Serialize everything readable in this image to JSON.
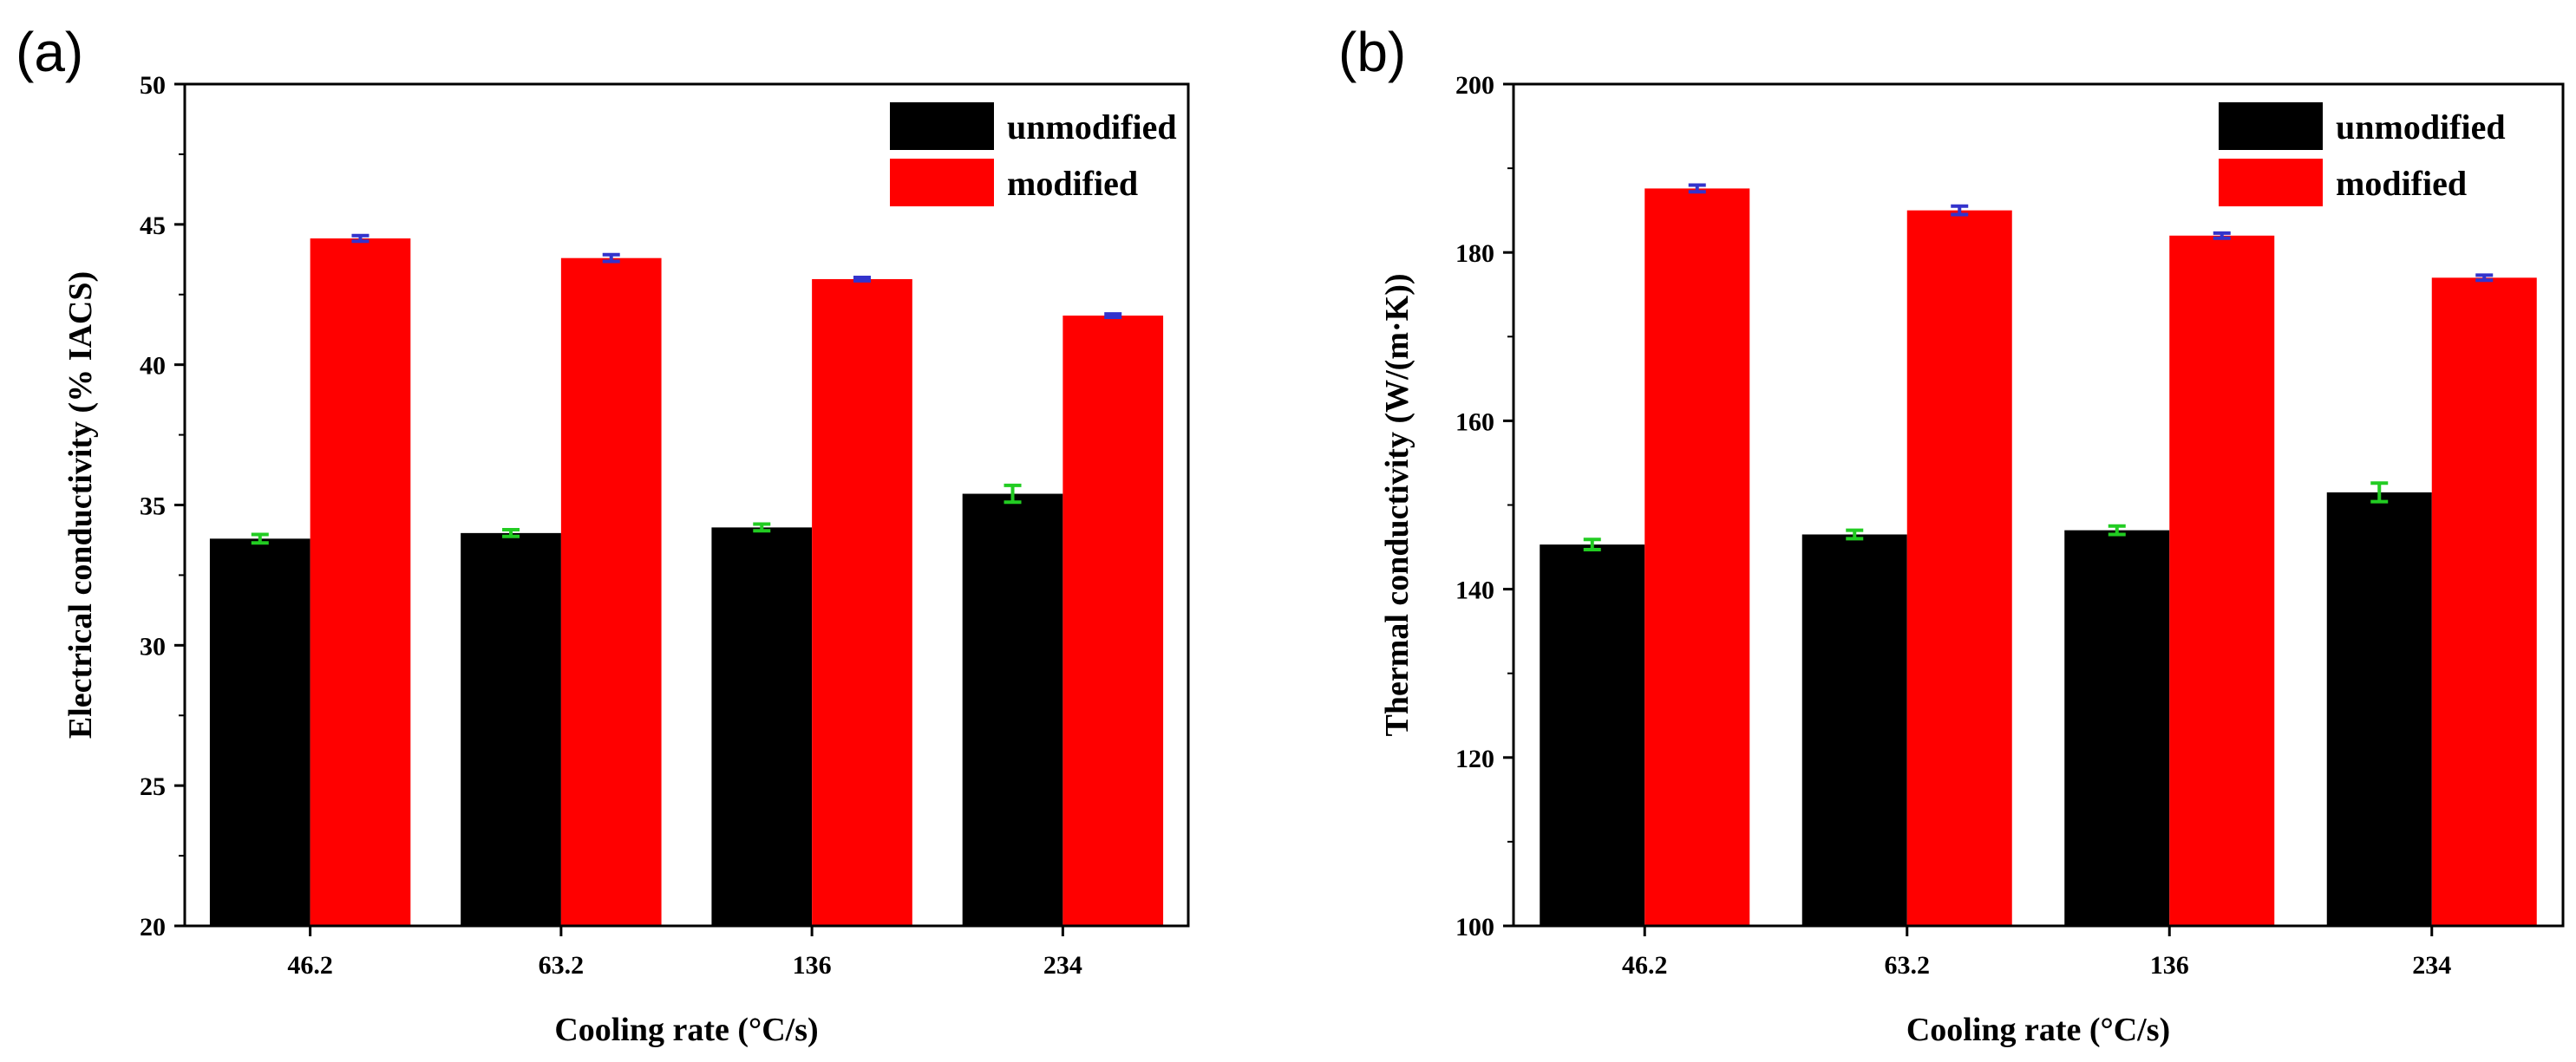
{
  "chart_data": [
    {
      "type": "bar",
      "panel_label": "(a)",
      "categories": [
        "46.2",
        "63.2",
        "136",
        "234"
      ],
      "series": [
        {
          "name": "unmodified",
          "color": "#000000",
          "error_color": "#22cc22",
          "values": [
            33.8,
            34.0,
            34.2,
            35.4
          ],
          "errors": [
            0.15,
            0.12,
            0.12,
            0.3
          ]
        },
        {
          "name": "modified",
          "color": "#ff0000",
          "error_color": "#3333cc",
          "values": [
            44.5,
            43.8,
            43.05,
            41.75
          ],
          "errors": [
            0.1,
            0.12,
            0.06,
            0.06
          ]
        }
      ],
      "xlabel": "Cooling rate (°C/s)",
      "ylabel": "Electrical conductivity (% IACS)",
      "ylim": [
        20,
        50
      ],
      "yticks": [
        "20",
        "25",
        "30",
        "35",
        "40",
        "45",
        "50"
      ],
      "ytick_values": [
        20,
        25,
        30,
        35,
        40,
        45,
        50
      ],
      "legend": "top-right"
    },
    {
      "type": "bar",
      "panel_label": "(b)",
      "categories": [
        "46.2",
        "63.2",
        "136",
        "234"
      ],
      "series": [
        {
          "name": "unmodified",
          "color": "#000000",
          "error_color": "#22cc22",
          "values": [
            145.3,
            146.5,
            147.0,
            151.5
          ],
          "errors": [
            0.6,
            0.5,
            0.5,
            1.1
          ]
        },
        {
          "name": "modified",
          "color": "#ff0000",
          "error_color": "#3333cc",
          "values": [
            187.6,
            185.0,
            182.0,
            177.0
          ],
          "errors": [
            0.4,
            0.5,
            0.3,
            0.3
          ]
        }
      ],
      "xlabel": "Cooling rate (°C/s)",
      "ylabel": "Thermal conductivity (W/(m·K))",
      "ylim": [
        100,
        200
      ],
      "yticks": [
        "100",
        "120",
        "140",
        "160",
        "180",
        "200"
      ],
      "ytick_values": [
        100,
        120,
        140,
        160,
        180,
        200
      ],
      "legend": "top-right"
    }
  ]
}
